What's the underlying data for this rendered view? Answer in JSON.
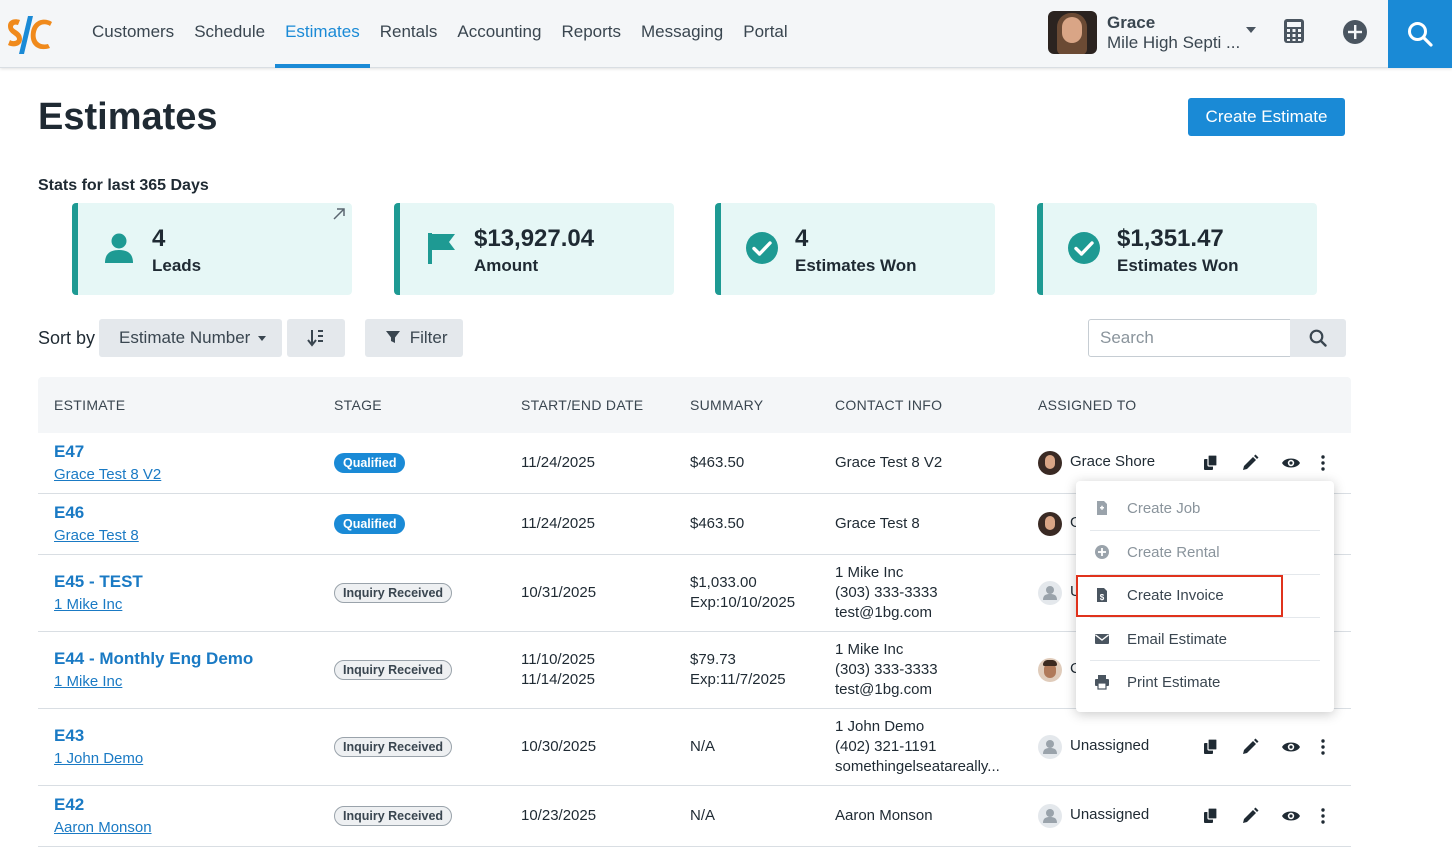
{
  "nav": {
    "items": [
      "Customers",
      "Schedule",
      "Estimates",
      "Rentals",
      "Accounting",
      "Reports",
      "Messaging",
      "Portal"
    ],
    "active": "Estimates"
  },
  "profile": {
    "name": "Grace",
    "company": "Mile High Septi ..."
  },
  "header": {
    "title": "Estimates",
    "create_label": "Create Estimate"
  },
  "stats": {
    "label": "Stats for last 365 Days",
    "cards": [
      {
        "value": "4",
        "label": "Leads",
        "icon": "person-icon"
      },
      {
        "value": "$13,927.04",
        "label": "Amount",
        "icon": "flag-icon"
      },
      {
        "value": "4",
        "label": "Estimates Won",
        "icon": "check-circle-icon"
      },
      {
        "value": "$1,351.47",
        "label": "Estimates Won",
        "icon": "check-circle-icon"
      }
    ]
  },
  "toolbar": {
    "sort_label": "Sort by",
    "sort_value": "Estimate Number",
    "filter_label": "Filter",
    "search_placeholder": "Search"
  },
  "table": {
    "headers": [
      "ESTIMATE",
      "STAGE",
      "START/END DATE",
      "SUMMARY",
      "CONTACT INFO",
      "ASSIGNED TO"
    ],
    "rows": [
      {
        "number": "E47",
        "name": "Grace Test 8 V2",
        "stage": "Qualified",
        "dates": [
          "11/24/2025"
        ],
        "summary": [
          "$463.50"
        ],
        "contact": [
          "Grace Test 8 V2"
        ],
        "assigned": "Grace Shore"
      },
      {
        "number": "E46",
        "name": "Grace Test 8",
        "stage": "Qualified",
        "dates": [
          "11/24/2025"
        ],
        "summary": [
          "$463.50"
        ],
        "contact": [
          "Grace Test 8"
        ],
        "assigned": "G"
      },
      {
        "number": "E45 - TEST",
        "name": "1 Mike Inc",
        "stage": "Inquiry Received",
        "dates": [
          "10/31/2025"
        ],
        "summary": [
          "$1,033.00",
          "Exp:10/10/2025"
        ],
        "contact": [
          "1 Mike Inc",
          "(303) 333-3333",
          "test@1bg.com"
        ],
        "assigned": "U"
      },
      {
        "number": "E44 - Monthly Eng Demo",
        "name": "1 Mike Inc",
        "stage": "Inquiry Received",
        "dates": [
          "11/10/2025",
          "11/14/2025"
        ],
        "summary": [
          "$79.73",
          "Exp:11/7/2025"
        ],
        "contact": [
          "1 Mike Inc",
          "(303) 333-3333",
          "test@1bg.com"
        ],
        "assigned": "C"
      },
      {
        "number": "E43",
        "name": "1 John Demo",
        "stage": "Inquiry Received",
        "dates": [
          "10/30/2025"
        ],
        "summary": [
          "N/A"
        ],
        "contact": [
          "1 John Demo",
          "(402) 321-1191",
          "somethingelseatareally..."
        ],
        "assigned": "Unassigned"
      },
      {
        "number": "E42",
        "name": "Aaron Monson",
        "stage": "Inquiry Received",
        "dates": [
          "10/23/2025"
        ],
        "summary": [
          "N/A"
        ],
        "contact": [
          "Aaron Monson"
        ],
        "assigned": "Unassigned"
      }
    ]
  },
  "menu": {
    "items": [
      {
        "label": "Create Job",
        "icon": "file-icon"
      },
      {
        "label": "Create Rental",
        "icon": "plus-circle-icon"
      },
      {
        "label": "Create Invoice",
        "icon": "invoice-icon"
      },
      {
        "label": "Email Estimate",
        "icon": "envelope-icon"
      },
      {
        "label": "Print Estimate",
        "icon": "printer-icon"
      }
    ]
  },
  "colors": {
    "accent": "#1a8ad6",
    "teal": "#1e9a93",
    "card_bg": "#e6f7f6",
    "highlight": "#e0321c"
  }
}
